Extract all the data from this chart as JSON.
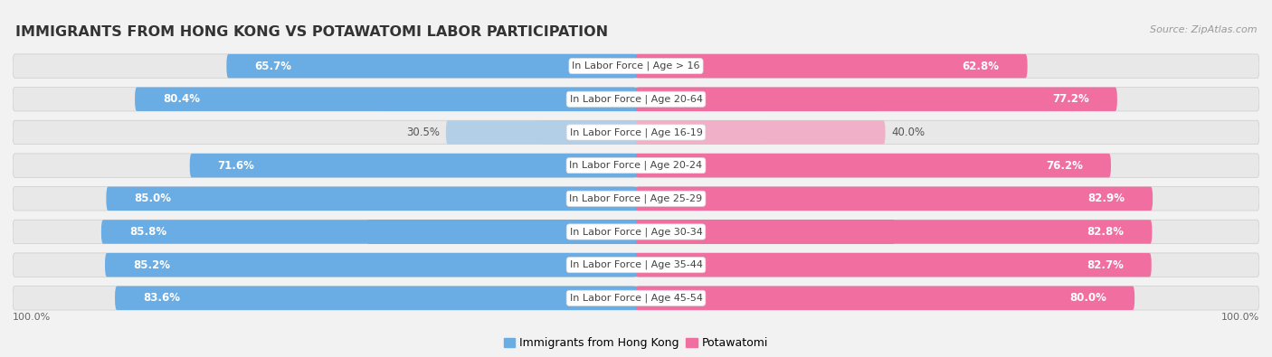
{
  "title": "IMMIGRANTS FROM HONG KONG VS POTAWATOMI LABOR PARTICIPATION",
  "source": "Source: ZipAtlas.com",
  "categories": [
    "In Labor Force | Age > 16",
    "In Labor Force | Age 20-64",
    "In Labor Force | Age 16-19",
    "In Labor Force | Age 20-24",
    "In Labor Force | Age 25-29",
    "In Labor Force | Age 30-34",
    "In Labor Force | Age 35-44",
    "In Labor Force | Age 45-54"
  ],
  "hk_values": [
    65.7,
    80.4,
    30.5,
    71.6,
    85.0,
    85.8,
    85.2,
    83.6
  ],
  "pot_values": [
    62.8,
    77.2,
    40.0,
    76.2,
    82.9,
    82.8,
    82.7,
    80.0
  ],
  "hk_color": "#6aace4",
  "hk_color_light": "#b3cfe8",
  "pot_color": "#f06fa0",
  "pot_color_light": "#f0b0c8",
  "row_bg_color": "#e8e8e8",
  "bg_color": "#f2f2f2",
  "max_val": 100.0,
  "bar_height": 0.72,
  "label_fontsize": 8.5,
  "cat_fontsize": 8.0,
  "title_fontsize": 11.5
}
